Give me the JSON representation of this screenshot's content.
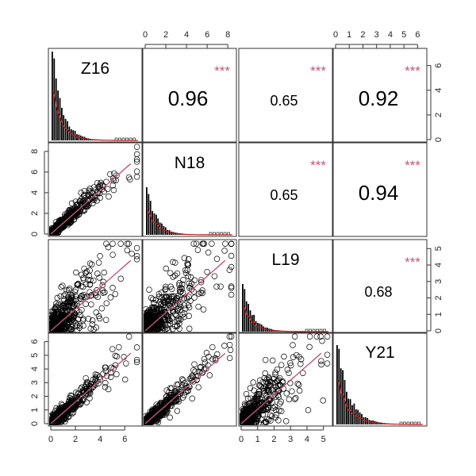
{
  "chart_data": {
    "type": "scatter-matrix",
    "variables": [
      "Z16",
      "N18",
      "L19",
      "Y21"
    ],
    "ranges": {
      "Z16": [
        0,
        7.2
      ],
      "N18": [
        0,
        8.6
      ],
      "L19": [
        0,
        5.4
      ],
      "Y21": [
        0,
        6.5
      ]
    },
    "ticks": {
      "Z16": [
        0,
        2,
        4,
        6
      ],
      "N18": [
        0,
        2,
        4,
        6,
        8
      ],
      "L19": [
        0,
        1,
        2,
        3,
        4,
        5
      ],
      "Y21": [
        0,
        1,
        2,
        3,
        4,
        5,
        6
      ]
    },
    "diag_axis_ticks": {
      "Z16": [
        0,
        2,
        4,
        6
      ],
      "L19": [
        0,
        1,
        2,
        3,
        4,
        5
      ]
    },
    "correlations": [
      {
        "row": 0,
        "col": 1,
        "value": "0.96",
        "stars": "***",
        "size": "large"
      },
      {
        "row": 0,
        "col": 2,
        "value": "0.65",
        "stars": "***",
        "size": "small"
      },
      {
        "row": 0,
        "col": 3,
        "value": "0.92",
        "stars": "***",
        "size": "large"
      },
      {
        "row": 1,
        "col": 2,
        "value": "0.65",
        "stars": "***",
        "size": "small"
      },
      {
        "row": 1,
        "col": 3,
        "value": "0.94",
        "stars": "***",
        "size": "large"
      },
      {
        "row": 2,
        "col": 3,
        "value": "0.68",
        "stars": "***",
        "size": "small"
      }
    ],
    "scatter_panels": [
      {
        "row": 1,
        "col": 0,
        "corr": 0.96,
        "x": "Z16",
        "y": "N18"
      },
      {
        "row": 2,
        "col": 0,
        "corr": 0.65,
        "x": "Z16",
        "y": "L19"
      },
      {
        "row": 2,
        "col": 1,
        "corr": 0.65,
        "x": "N18",
        "y": "L19"
      },
      {
        "row": 3,
        "col": 0,
        "corr": 0.92,
        "x": "Z16",
        "y": "Y21"
      },
      {
        "row": 3,
        "col": 1,
        "corr": 0.94,
        "x": "N18",
        "y": "Y21"
      },
      {
        "row": 3,
        "col": 2,
        "corr": 0.68,
        "x": "L19",
        "y": "Y21"
      }
    ],
    "smooth_color": "#c15874",
    "point_color": "#000000",
    "stars_color": "#c15874",
    "histogram_color": "#000000",
    "density_color": "#c01818"
  }
}
